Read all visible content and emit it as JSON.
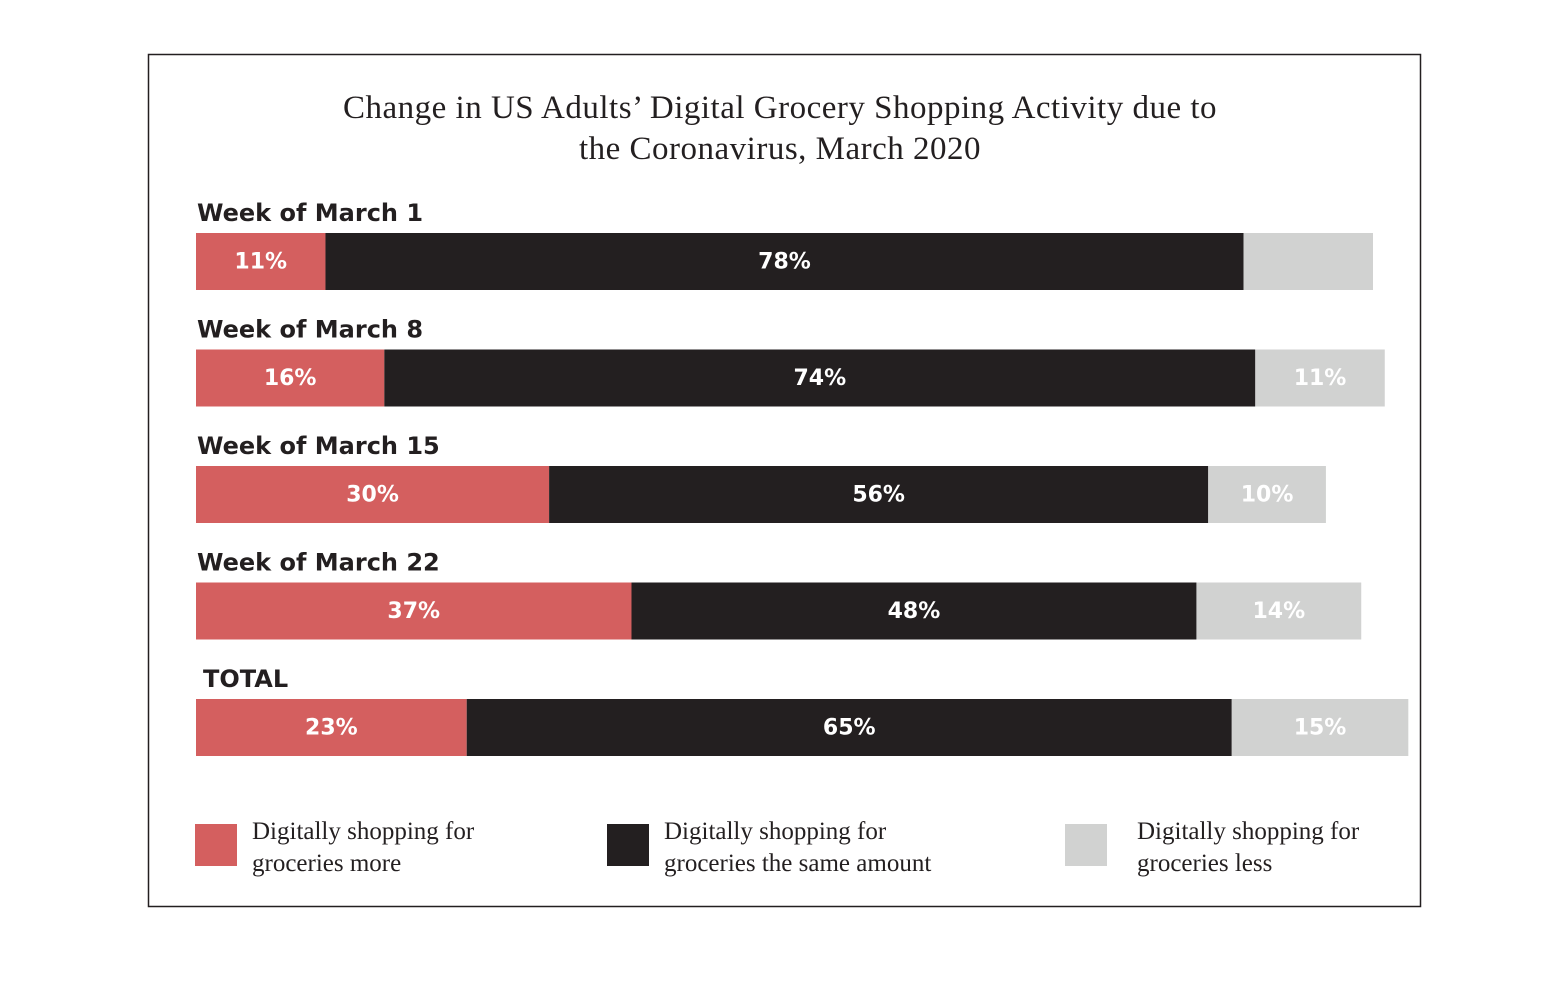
{
  "chart_data": {
    "type": "stacked-bar",
    "title": "Change in US Adults’ Digital Grocery Shopping Activity due to the Coronavirus, March 2020",
    "categories": [
      "Week of March 1",
      "Week of March 8",
      "Week of March 15",
      "Week of March 22",
      "TOTAL"
    ],
    "series": [
      {
        "name": "Digitally shopping for groceries more",
        "color": "#d45f5f",
        "values": [
          11,
          16,
          30,
          37,
          23
        ],
        "value_labels": [
          "11%",
          "16%",
          "30%",
          "37%",
          "23%"
        ]
      },
      {
        "name": "Digitally shopping for groceries the same amount",
        "color": "#231f20",
        "values": [
          78,
          74,
          56,
          48,
          65
        ],
        "value_labels": [
          "78%",
          "74%",
          "56%",
          "48%",
          "65%"
        ]
      },
      {
        "name": "Digitally shopping for groceries less",
        "color": "#d1d2d1",
        "values": [
          11,
          11,
          10,
          14,
          15
        ],
        "value_labels": [
          null,
          "11%",
          "10%",
          "14%",
          "15%"
        ]
      }
    ]
  }
}
